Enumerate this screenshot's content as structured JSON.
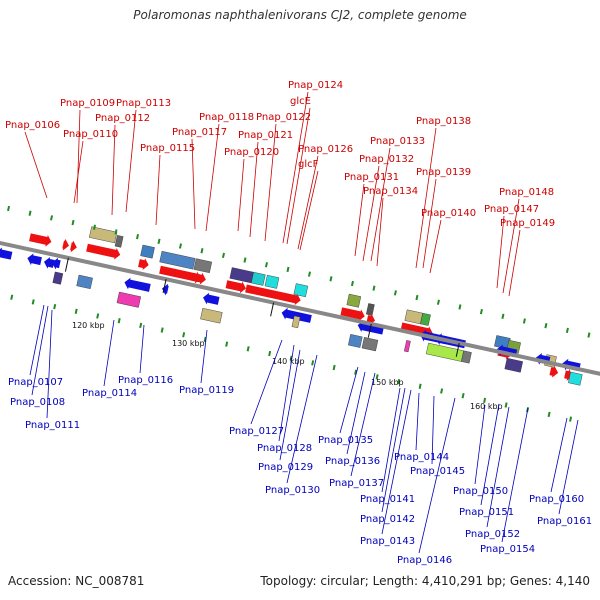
{
  "title": "Polaromonas naphthalenivorans CJ2, complete genome",
  "footer": {
    "accession": "Accession: NC_008781",
    "info": "Topology: circular; Length: 4,410,291 bp; Genes: 4,140"
  },
  "axis_ticks": [
    "120 kbp",
    "130 kbp",
    "140 kbp",
    "150 kbp",
    "160 kbp"
  ],
  "colors": {
    "top_label": "#cc0000",
    "bottom_label": "#0000bb",
    "forward_arrow": "#ee1111",
    "reverse_arrow": "#1111dd",
    "backbone": "#888888"
  },
  "top_labels": [
    "Pnap_0106",
    "Pnap_0109",
    "Pnap_0110",
    "Pnap_0112",
    "Pnap_0113",
    "Pnap_0115",
    "Pnap_0117",
    "Pnap_0118",
    "Pnap_0120",
    "Pnap_0121",
    "Pnap_0122",
    "glcE",
    "Pnap_0124",
    "Pnap_0126",
    "glcF",
    "Pnap_0131",
    "Pnap_0132",
    "Pnap_0133",
    "Pnap_0134",
    "Pnap_0138",
    "Pnap_0139",
    "Pnap_0140",
    "Pnap_0147",
    "Pnap_0148",
    "Pnap_0149"
  ],
  "bottom_labels": [
    "Pnap_0107",
    "Pnap_0108",
    "Pnap_0111",
    "Pnap_0114",
    "Pnap_0116",
    "Pnap_0119",
    "Pnap_0127",
    "Pnap_0128",
    "Pnap_0129",
    "Pnap_0130",
    "Pnap_0135",
    "Pnap_0136",
    "Pnap_0137",
    "Pnap_0141",
    "Pnap_0142",
    "Pnap_0143",
    "Pnap_0144",
    "Pnap_0145",
    "Pnap_0146",
    "Pnap_0150",
    "Pnap_0151",
    "Pnap_0152",
    "Pnap_0154",
    "Pnap_0160",
    "Pnap_0161"
  ]
}
